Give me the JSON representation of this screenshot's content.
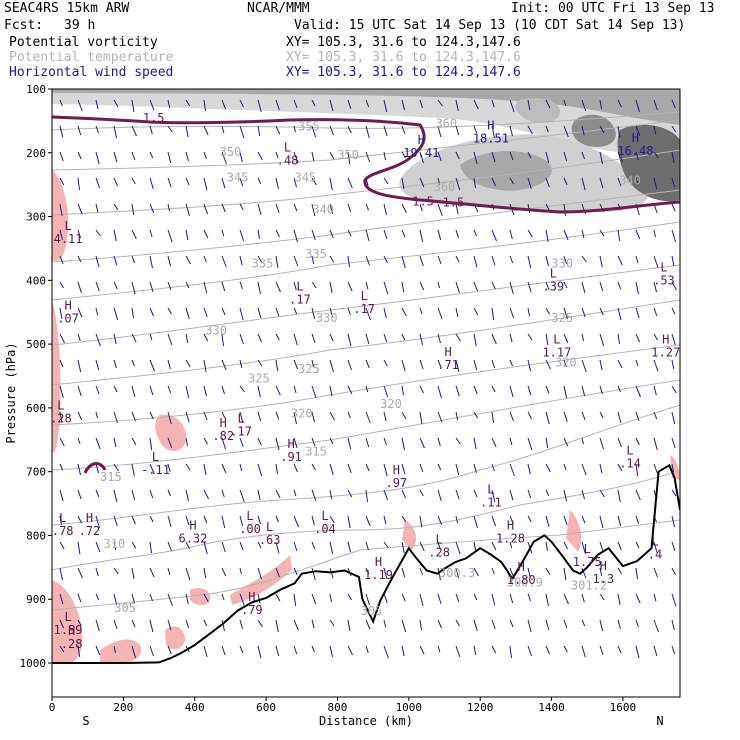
{
  "header": {
    "model": "SEAC4RS 15km ARW",
    "org": "NCAR/MMM",
    "init": "Init: 00 UTC Fri 13 Sep 13",
    "fcst_label": "Fcst:",
    "fcst_value": "39 h",
    "valid": "Valid: 15 UTC Sat 14 Sep 13 (10 CDT Sat 14 Sep 13)",
    "legend": [
      {
        "name": "Potential vorticity",
        "xy": "XY= 105.3, 31.6 to 124.3,147.6",
        "color": "#000000"
      },
      {
        "name": "Potential temperature",
        "xy": "XY= 105.3, 31.6 to 124.3,147.6",
        "color": "#b4b4b4"
      },
      {
        "name": "Horizontal wind speed",
        "xy": "XY= 105.3, 31.6 to 124.3,147.6",
        "color": "#1c1c8c"
      }
    ]
  },
  "chart_data": {
    "type": "cross-section",
    "xlabel": "Distance (km)",
    "ylabel": "Pressure (hPa)",
    "xlim": [
      0,
      1760
    ],
    "ylim": [
      1000,
      100
    ],
    "x_ticks": [
      0,
      200,
      400,
      600,
      800,
      1000,
      1200,
      1400,
      1600
    ],
    "y_ticks": [
      100,
      200,
      300,
      400,
      500,
      600,
      700,
      800,
      900,
      1000
    ],
    "x_end_labels": {
      "left": "S",
      "right": "N"
    },
    "theta_labels": [
      {
        "v": "355",
        "x": 720,
        "p": 165
      },
      {
        "v": "350",
        "x": 500,
        "p": 205
      },
      {
        "v": "350",
        "x": 830,
        "p": 210
      },
      {
        "v": "345",
        "x": 520,
        "p": 245
      },
      {
        "v": "345",
        "x": 710,
        "p": 245
      },
      {
        "v": "340",
        "x": 760,
        "p": 295
      },
      {
        "v": "340",
        "x": 1620,
        "p": 250
      },
      {
        "v": "335",
        "x": 590,
        "p": 380
      },
      {
        "v": "335",
        "x": 740,
        "p": 365
      },
      {
        "v": "330",
        "x": 1430,
        "p": 380
      },
      {
        "v": "330",
        "x": 460,
        "p": 485
      },
      {
        "v": "330",
        "x": 770,
        "p": 465
      },
      {
        "v": "325",
        "x": 1430,
        "p": 465
      },
      {
        "v": "325",
        "x": 580,
        "p": 560
      },
      {
        "v": "325",
        "x": 720,
        "p": 545
      },
      {
        "v": "320",
        "x": 1440,
        "p": 535
      },
      {
        "v": "320",
        "x": 700,
        "p": 615
      },
      {
        "v": "320",
        "x": 950,
        "p": 600
      },
      {
        "v": "315",
        "x": 740,
        "p": 675
      },
      {
        "v": "315",
        "x": 165,
        "p": 715
      },
      {
        "v": "310",
        "x": 175,
        "p": 820
      },
      {
        "v": "305",
        "x": 205,
        "p": 920
      },
      {
        "v": "305",
        "x": 895,
        "p": 925
      },
      {
        "v": "300.3",
        "x": 1135,
        "p": 865
      },
      {
        "v": "300.9",
        "x": 1325,
        "p": 880
      },
      {
        "v": "301.2",
        "x": 1505,
        "p": 885
      },
      {
        "v": "360",
        "x": 1105,
        "p": 160
      },
      {
        "v": "360",
        "x": 1100,
        "p": 260
      }
    ],
    "pv_labels": [
      {
        "v": "1.5",
        "x": 285,
        "p": 152
      },
      {
        "v": "1.5",
        "x": 1040,
        "p": 283
      },
      {
        "v": "1.5",
        "x": 1125,
        "p": 284
      }
    ],
    "wind_extrema": [
      {
        "t": "H",
        "v": "19.41",
        "x": 1035,
        "p": 200
      },
      {
        "t": "H",
        "v": "18.51",
        "x": 1230,
        "p": 178
      },
      {
        "t": "H",
        "v": "16.48",
        "x": 1635,
        "p": 197
      },
      {
        "t": "L",
        "v": ".48",
        "x": 660,
        "p": 212
      },
      {
        "t": "L",
        "v": "4.11",
        "x": 45,
        "p": 335
      },
      {
        "t": "L",
        "v": ".53",
        "x": 1715,
        "p": 400
      },
      {
        "t": "L",
        "v": ".39",
        "x": 1405,
        "p": 410
      },
      {
        "t": "L",
        "v": ".17",
        "x": 695,
        "p": 430
      },
      {
        "t": "L",
        "v": ".17",
        "x": 875,
        "p": 445
      },
      {
        "t": "H",
        "v": ".07",
        "x": 45,
        "p": 460
      },
      {
        "t": "L",
        "v": "1.17",
        "x": 1415,
        "p": 513
      },
      {
        "t": "H",
        "v": "1.27",
        "x": 1720,
        "p": 513
      },
      {
        "t": "H",
        "v": ".71",
        "x": 1110,
        "p": 533
      },
      {
        "t": "L",
        "v": ".28",
        "x": 25,
        "p": 617
      },
      {
        "t": "H",
        "v": ".82",
        "x": 480,
        "p": 644
      },
      {
        "t": "L",
        "v": ".17",
        "x": 530,
        "p": 637
      },
      {
        "t": "H",
        "v": ".91",
        "x": 670,
        "p": 677
      },
      {
        "t": "L",
        "v": "-.11",
        "x": 290,
        "p": 697
      },
      {
        "t": "L",
        "v": ".14",
        "x": 1620,
        "p": 687
      },
      {
        "t": "H",
        "v": ".97",
        "x": 965,
        "p": 718
      },
      {
        "t": "L",
        "v": ".11",
        "x": 1230,
        "p": 748
      },
      {
        "t": "L",
        "v": ".78",
        "x": 30,
        "p": 793
      },
      {
        "t": "H",
        "v": ".72",
        "x": 105,
        "p": 793
      },
      {
        "t": "H",
        "v": "6.32",
        "x": 395,
        "p": 805
      },
      {
        "t": "L",
        "v": ".00",
        "x": 555,
        "p": 790
      },
      {
        "t": "L",
        "v": ".63",
        "x": 610,
        "p": 807
      },
      {
        "t": "L",
        "v": ".04",
        "x": 765,
        "p": 790
      },
      {
        "t": "L",
        "v": ".28",
        "x": 1085,
        "p": 827
      },
      {
        "t": "H",
        "v": "1.28",
        "x": 1285,
        "p": 805
      },
      {
        "t": "H",
        "v": "1.19",
        "x": 915,
        "p": 862
      },
      {
        "t": "H",
        "v": "1.80",
        "x": 1315,
        "p": 870
      },
      {
        "t": "L",
        "v": "1.75",
        "x": 1500,
        "p": 842
      },
      {
        "t": "H",
        "v": "1.3",
        "x": 1545,
        "p": 868
      },
      {
        "t": "L",
        "v": ".4",
        "x": 1690,
        "p": 830
      },
      {
        "t": "H",
        "v": ".79",
        "x": 560,
        "p": 917
      },
      {
        "t": "L",
        "v": "1.59",
        "x": 45,
        "p": 948
      },
      {
        "t": "H",
        "v": ".28",
        "x": 55,
        "p": 970
      }
    ],
    "terrain_surface_pressure": {
      "x": [
        0,
        100,
        200,
        300,
        330,
        360,
        400,
        440,
        480,
        520,
        560,
        600,
        640,
        680,
        700,
        740,
        780,
        820,
        860,
        870,
        900,
        920,
        950,
        980,
        1000,
        1020,
        1050,
        1080,
        1100,
        1130,
        1160,
        1200,
        1230,
        1260,
        1290,
        1320,
        1350,
        1380,
        1400,
        1430,
        1460,
        1480,
        1500,
        1530,
        1560,
        1600,
        1640,
        1680,
        1700,
        1730,
        1745,
        1760
      ],
      "p": [
        1000,
        1000,
        1000,
        999,
        993,
        985,
        972,
        955,
        938,
        918,
        905,
        898,
        885,
        875,
        860,
        856,
        858,
        855,
        865,
        900,
        935,
        902,
        870,
        840,
        820,
        835,
        855,
        860,
        852,
        842,
        836,
        820,
        830,
        842,
        868,
        840,
        810,
        800,
        810,
        832,
        855,
        860,
        850,
        830,
        820,
        848,
        840,
        820,
        700,
        690,
        710,
        760
      ]
    }
  }
}
